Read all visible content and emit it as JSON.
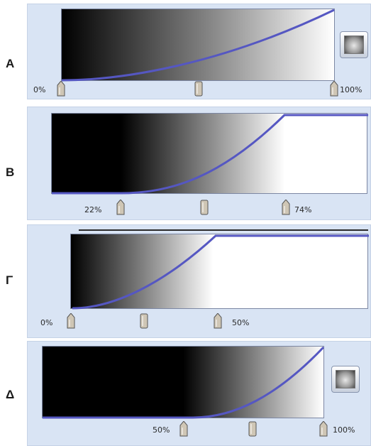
{
  "panels": [
    {
      "id": "A",
      "letter": "A",
      "left_label": "0%",
      "right_label": "100%",
      "has_preview": true
    },
    {
      "id": "B",
      "letter": "B",
      "left_label": "22%",
      "right_label": "74%",
      "has_preview": false
    },
    {
      "id": "G",
      "letter": "Γ",
      "left_label": "0%",
      "right_label": "50%",
      "has_preview": false
    },
    {
      "id": "D",
      "letter": "Δ",
      "left_label": "50%",
      "right_label": "100%",
      "has_preview": true
    }
  ],
  "colors": {
    "curve": "#5557c2",
    "panel": "#d9e4f4",
    "frame": "#7c87a3"
  },
  "icons": {
    "preview": "xray-thumbnail-icon",
    "handle": "slider-handle-icon"
  }
}
